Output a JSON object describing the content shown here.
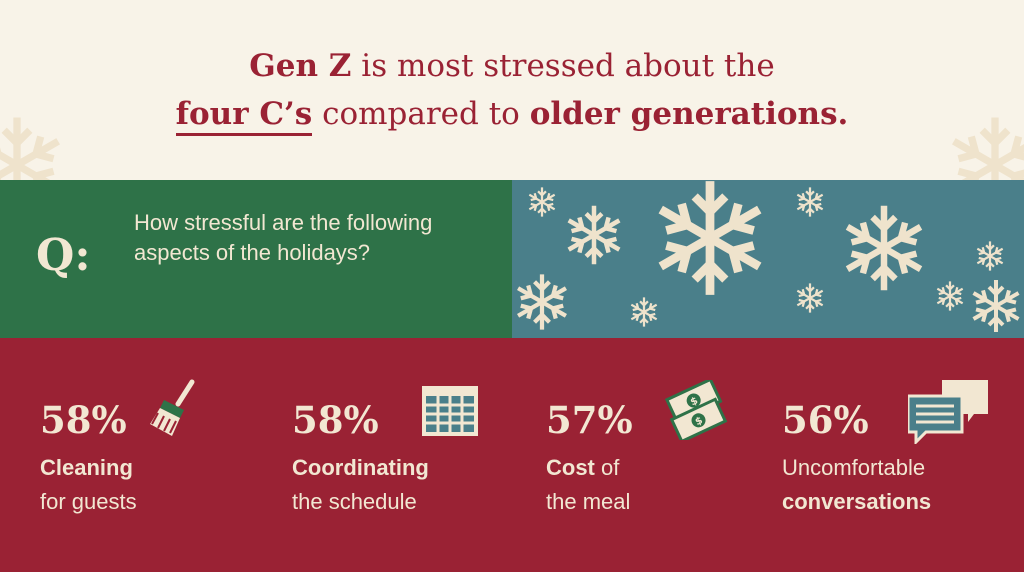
{
  "headline": {
    "line1_bold": "Gen Z",
    "line1_rest": " is most stressed about the",
    "line2_underlined": "four C’s",
    "line2_mid": " compared to ",
    "line2_bold": "older generations."
  },
  "question": {
    "marker": "Q:",
    "text": "How stressful are the following aspects of the holidays?"
  },
  "stats": [
    {
      "percent": "58%",
      "bold": "Cleaning",
      "rest": "for guests",
      "icon": "broom-icon"
    },
    {
      "percent": "58%",
      "bold": "Coordinating",
      "rest": "the schedule",
      "icon": "calendar-icon"
    },
    {
      "percent": "57%",
      "bold": "Cost",
      "rest_inline": " of",
      "rest": "the meal",
      "icon": "money-icon"
    },
    {
      "percent": "56%",
      "top": "Uncomfortable",
      "bold": "conversations",
      "icon": "chat-bubbles-icon"
    }
  ],
  "colors": {
    "background": "#f8f3e8",
    "brand_red": "#9a2234",
    "green_panel": "#2e7248",
    "blue_panel": "#4a7f8a",
    "cream": "#f2e7d2"
  }
}
